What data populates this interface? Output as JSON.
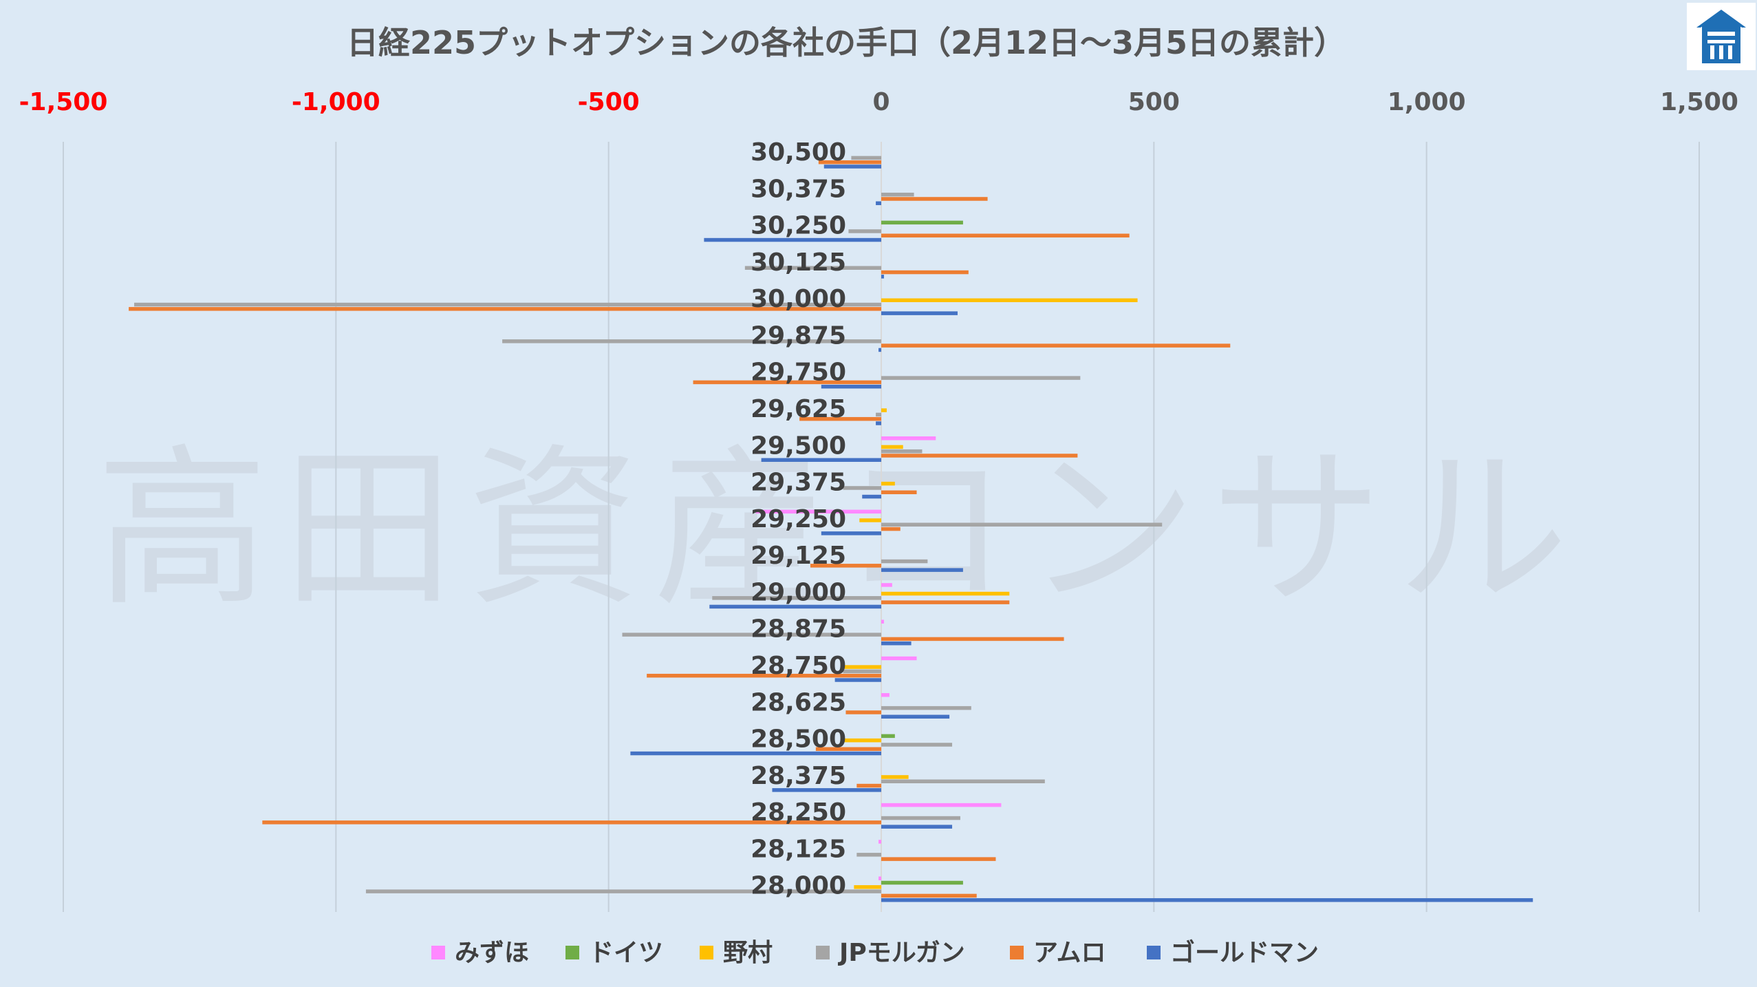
{
  "chart_data": {
    "type": "bar",
    "orientation": "horizontal",
    "title": "日経225プットオプションの各社の手口（2月12日～3月5日の累計）",
    "watermark": "高田資産コンサル",
    "xlim": [
      -1500,
      1500
    ],
    "xticks": [
      {
        "value": -1500,
        "label": "-1,500"
      },
      {
        "value": -1000,
        "label": "-1,000"
      },
      {
        "value": -500,
        "label": "-500"
      },
      {
        "value": 0,
        "label": "0"
      },
      {
        "value": 500,
        "label": "500"
      },
      {
        "value": 1000,
        "label": "1,000"
      },
      {
        "value": 1500,
        "label": "1,500"
      }
    ],
    "negative_tick_color": "#ff0000",
    "positive_tick_color": "#595959",
    "grid": true,
    "legend_position": "bottom",
    "categories": [
      "30,500",
      "30,375",
      "30,250",
      "30,125",
      "30,000",
      "29,875",
      "29,750",
      "29,625",
      "29,500",
      "29,375",
      "29,250",
      "29,125",
      "29,000",
      "28,875",
      "28,750",
      "28,625",
      "28,500",
      "28,375",
      "28,250",
      "28,125",
      "28,000"
    ],
    "series": [
      {
        "name": "みずほ",
        "color": "#ff88ff",
        "values": [
          0,
          0,
          0,
          0,
          0,
          0,
          0,
          0,
          100,
          0,
          -230,
          0,
          20,
          5,
          65,
          15,
          0,
          0,
          220,
          -5,
          -5
        ]
      },
      {
        "name": "ドイツ",
        "color": "#70ad47",
        "values": [
          0,
          0,
          150,
          0,
          0,
          0,
          0,
          0,
          0,
          0,
          0,
          0,
          0,
          0,
          0,
          0,
          25,
          0,
          0,
          0,
          150
        ]
      },
      {
        "name": "野村",
        "color": "#ffc000",
        "values": [
          0,
          0,
          0,
          0,
          470,
          0,
          0,
          10,
          40,
          25,
          -40,
          0,
          235,
          0,
          -70,
          0,
          -70,
          50,
          0,
          0,
          -50
        ]
      },
      {
        "name": "JPモルガン",
        "color": "#a5a5a5",
        "values": [
          -55,
          60,
          -60,
          -250,
          -1370,
          -695,
          365,
          -10,
          75,
          -70,
          515,
          85,
          -310,
          -475,
          -70,
          165,
          130,
          300,
          145,
          -45,
          -945
        ]
      },
      {
        "name": "アムロ",
        "color": "#ed7d31",
        "values": [
          -115,
          195,
          455,
          160,
          -1380,
          640,
          -345,
          -150,
          360,
          65,
          35,
          -130,
          235,
          335,
          -430,
          -65,
          -120,
          -45,
          -1135,
          210,
          175
        ]
      },
      {
        "name": "ゴールドマン",
        "color": "#4472c4",
        "values": [
          -105,
          -10,
          -325,
          5,
          140,
          -5,
          -110,
          -10,
          -220,
          -35,
          -110,
          150,
          -315,
          55,
          -85,
          125,
          -460,
          -200,
          130,
          0,
          1195
        ]
      }
    ]
  }
}
